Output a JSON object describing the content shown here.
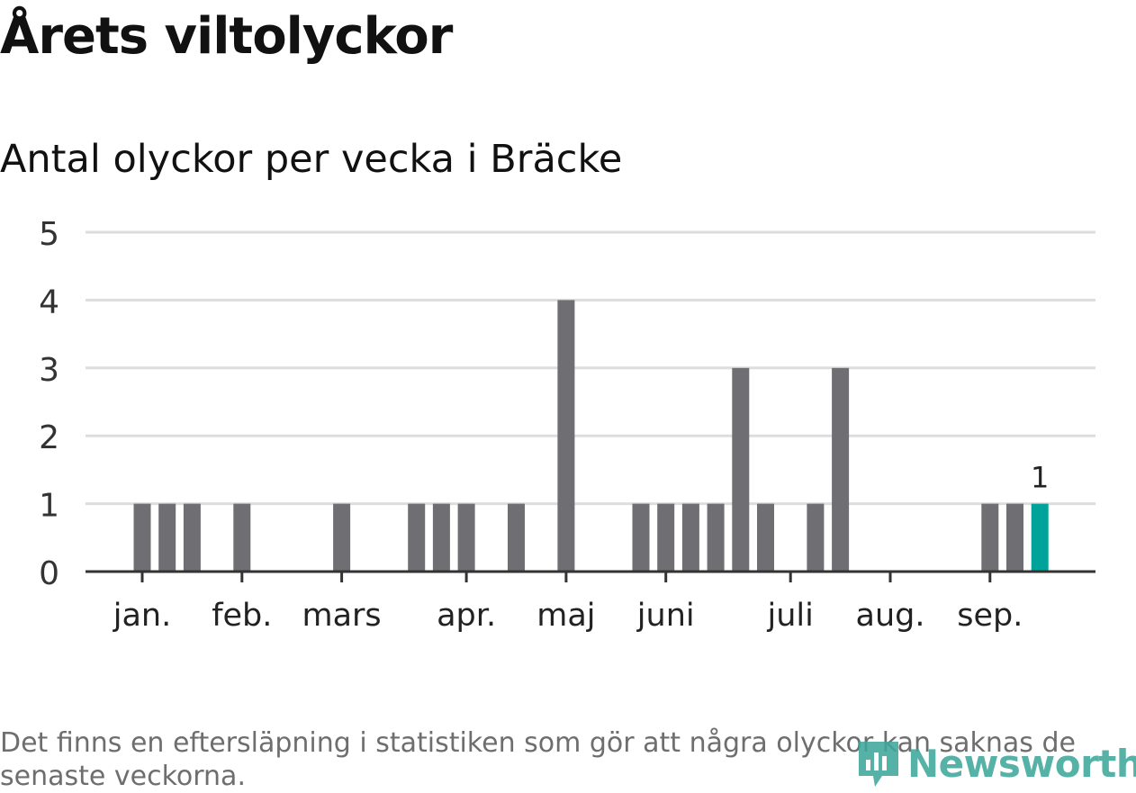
{
  "header": {
    "title": "Årets viltolyckor",
    "subtitle": "Antal olyckor per vecka i Bräcke"
  },
  "footer": {
    "note": "Det finns en eftersläpning i statistiken som gör att några olyckor kan saknas de senaste veckorna.",
    "logo_text": "Newsworthy"
  },
  "colors": {
    "bar": "#6f6e73",
    "highlight": "#00a39a",
    "grid": "#dddddd",
    "axis": "#333333",
    "logo": "#3fa79b"
  },
  "chart_data": {
    "type": "bar",
    "title": "",
    "xlabel": "",
    "ylabel": "",
    "ylim": [
      0,
      5
    ],
    "yticks": [
      0,
      1,
      2,
      3,
      4,
      5
    ],
    "grid": true,
    "month_labels": [
      "jan.",
      "feb.",
      "mars",
      "apr.",
      "maj",
      "juni",
      "juli",
      "aug.",
      "sep."
    ],
    "month_tick_weeks": [
      1,
      5,
      9,
      14,
      18,
      22,
      27,
      31,
      35
    ],
    "weeks": [
      1,
      2,
      3,
      4,
      5,
      6,
      7,
      8,
      9,
      10,
      11,
      12,
      13,
      14,
      15,
      16,
      17,
      18,
      19,
      20,
      21,
      22,
      23,
      24,
      25,
      26,
      27,
      28,
      29,
      30,
      31,
      32,
      33,
      34,
      35,
      36,
      37
    ],
    "values": [
      1,
      1,
      1,
      0,
      1,
      0,
      0,
      0,
      1,
      0,
      0,
      1,
      1,
      1,
      0,
      1,
      0,
      4,
      0,
      0,
      1,
      1,
      1,
      1,
      3,
      1,
      0,
      1,
      3,
      0,
      0,
      0,
      0,
      0,
      1,
      1,
      1
    ],
    "highlight_week": 37,
    "highlight_label": "1"
  }
}
